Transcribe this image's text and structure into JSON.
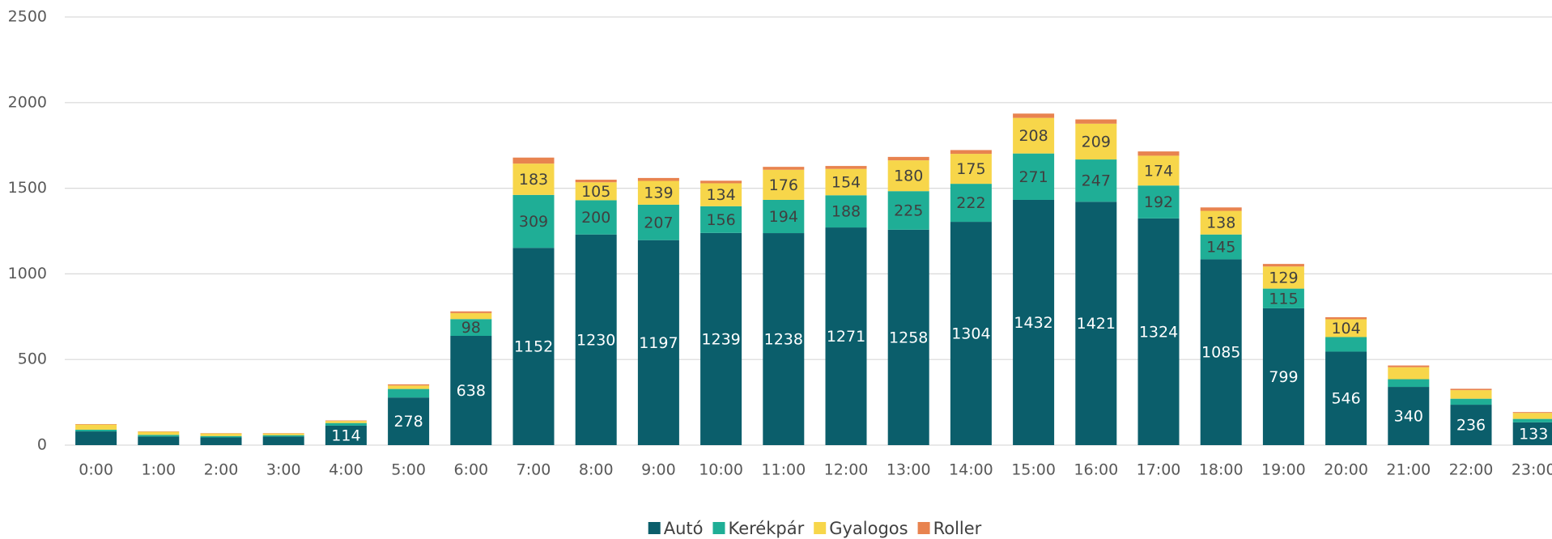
{
  "chart_data": {
    "type": "stacked_bar",
    "categories": [
      "0:00",
      "1:00",
      "2:00",
      "3:00",
      "4:00",
      "5:00",
      "6:00",
      "7:00",
      "8:00",
      "9:00",
      "10:00",
      "11:00",
      "12:00",
      "13:00",
      "14:00",
      "15:00",
      "16:00",
      "17:00",
      "18:00",
      "19:00",
      "20:00",
      "21:00",
      "22:00",
      "23:00"
    ],
    "series": [
      {
        "name": "Autó",
        "color": "#0b5e6b",
        "values": [
          80,
          50,
          45,
          50,
          114,
          278,
          638,
          1152,
          1230,
          1197,
          1239,
          1238,
          1271,
          1258,
          1304,
          1432,
          1421,
          1324,
          1085,
          799,
          546,
          340,
          236,
          133
        ]
      },
      {
        "name": "Kerékpár",
        "color": "#1fae96",
        "values": [
          10,
          10,
          8,
          8,
          15,
          50,
          98,
          309,
          200,
          207,
          156,
          194,
          188,
          225,
          222,
          271,
          247,
          192,
          145,
          115,
          85,
          45,
          35,
          20
        ]
      },
      {
        "name": "Gyalogos",
        "color": "#f7d64a",
        "values": [
          30,
          18,
          15,
          10,
          12,
          20,
          35,
          183,
          105,
          139,
          134,
          176,
          154,
          180,
          175,
          208,
          209,
          174,
          138,
          129,
          104,
          70,
          50,
          35
        ]
      },
      {
        "name": "Roller",
        "color": "#e8834f",
        "values": [
          3,
          2,
          2,
          2,
          3,
          7,
          10,
          35,
          15,
          17,
          15,
          17,
          17,
          20,
          22,
          25,
          25,
          25,
          20,
          15,
          12,
          10,
          8,
          5
        ]
      }
    ],
    "ylim": [
      0,
      2500
    ],
    "yticks": [
      0,
      500,
      1000,
      1500,
      2000,
      2500
    ],
    "grid": true,
    "legend": "bottom"
  }
}
